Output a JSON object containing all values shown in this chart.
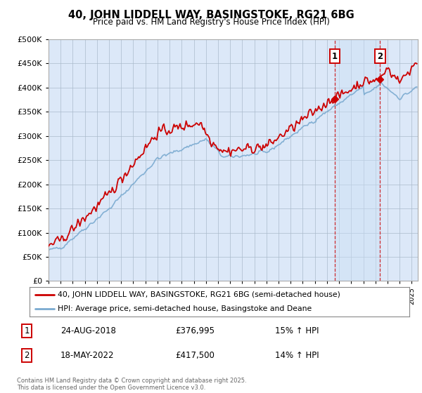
{
  "title": "40, JOHN LIDDELL WAY, BASINGSTOKE, RG21 6BG",
  "subtitle": "Price paid vs. HM Land Registry's House Price Index (HPI)",
  "ylim": [
    0,
    500000
  ],
  "yticks": [
    0,
    50000,
    100000,
    150000,
    200000,
    250000,
    300000,
    350000,
    400000,
    450000,
    500000
  ],
  "ytick_labels": [
    "£0",
    "£50K",
    "£100K",
    "£150K",
    "£200K",
    "£250K",
    "£300K",
    "£350K",
    "£400K",
    "£450K",
    "£500K"
  ],
  "background_color": "#ffffff",
  "plot_bg_color": "#dce8f8",
  "grid_color": "#aabbcc",
  "red_color": "#cc0000",
  "blue_color": "#7aaad0",
  "highlight_color": "#ccddf5",
  "marker1_x": 2018.648,
  "marker1_y": 376995,
  "marker2_x": 2022.38,
  "marker2_y": 417500,
  "legend_line1": "40, JOHN LIDDELL WAY, BASINGSTOKE, RG21 6BG (semi-detached house)",
  "legend_line2": "HPI: Average price, semi-detached house, Basingstoke and Deane",
  "marker1_date": "24-AUG-2018",
  "marker1_price": "£376,995",
  "marker1_hpi": "15% ↑ HPI",
  "marker2_date": "18-MAY-2022",
  "marker2_price": "£417,500",
  "marker2_hpi": "14% ↑ HPI",
  "footnote": "Contains HM Land Registry data © Crown copyright and database right 2025.\nThis data is licensed under the Open Government Licence v3.0.",
  "xmin": 1995.0,
  "xmax": 2025.5
}
